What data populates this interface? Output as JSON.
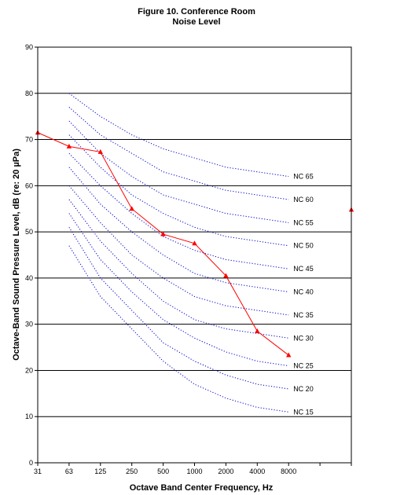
{
  "chart_data": {
    "type": "line",
    "title": "Figure 10. Conference Room",
    "subtitle": "Noise Level",
    "xlabel": "Octave Band Center Frequency, Hz",
    "ylabel": "Octave-Band Sound Pressure Level, dB (re: 20 µPa)",
    "categories": [
      "31",
      "63",
      "125",
      "250",
      "500",
      "1000",
      "2000",
      "4000",
      "8000",
      "",
      ""
    ],
    "ylim": [
      0,
      90
    ],
    "yticks": [
      "0",
      "10",
      "20",
      "30",
      "40",
      "50",
      "60",
      "70",
      "80",
      "90"
    ],
    "grid": "horizontal",
    "measured": {
      "color": "#ff0000",
      "values": [
        71.5,
        68.5,
        67.3,
        55.0,
        49.5,
        47.5,
        40.5,
        28.5,
        23.3,
        null,
        54.8
      ]
    },
    "nc_color": "#0000cc",
    "nc_curves": [
      {
        "label": "NC 65",
        "values": [
          null,
          80,
          75,
          71,
          68,
          66,
          64,
          63,
          62
        ]
      },
      {
        "label": "NC 60",
        "values": [
          null,
          77,
          71,
          67,
          63,
          61,
          59,
          58,
          57
        ]
      },
      {
        "label": "NC 55",
        "values": [
          null,
          74,
          67,
          62,
          58,
          56,
          54,
          53,
          52
        ]
      },
      {
        "label": "NC 50",
        "values": [
          null,
          71,
          64,
          58,
          54,
          51,
          49,
          48,
          47
        ]
      },
      {
        "label": "NC 45",
        "values": [
          null,
          67,
          60,
          54,
          49,
          46,
          44,
          43,
          42
        ]
      },
      {
        "label": "NC 40",
        "values": [
          null,
          64,
          56,
          50,
          45,
          41,
          39,
          38,
          37
        ]
      },
      {
        "label": "NC 35",
        "values": [
          null,
          60,
          52,
          45,
          40,
          36,
          34,
          33,
          32
        ]
      },
      {
        "label": "NC 30",
        "values": [
          null,
          57,
          48,
          41,
          35,
          31,
          29,
          28,
          27
        ]
      },
      {
        "label": "NC 25",
        "values": [
          null,
          54,
          44,
          37,
          31,
          27,
          24,
          22,
          21
        ]
      },
      {
        "label": "NC 20",
        "values": [
          null,
          51,
          40,
          33,
          26,
          22,
          19,
          17,
          16
        ]
      },
      {
        "label": "NC 15",
        "values": [
          null,
          47,
          36,
          29,
          22,
          17,
          14,
          12,
          11
        ]
      }
    ]
  }
}
